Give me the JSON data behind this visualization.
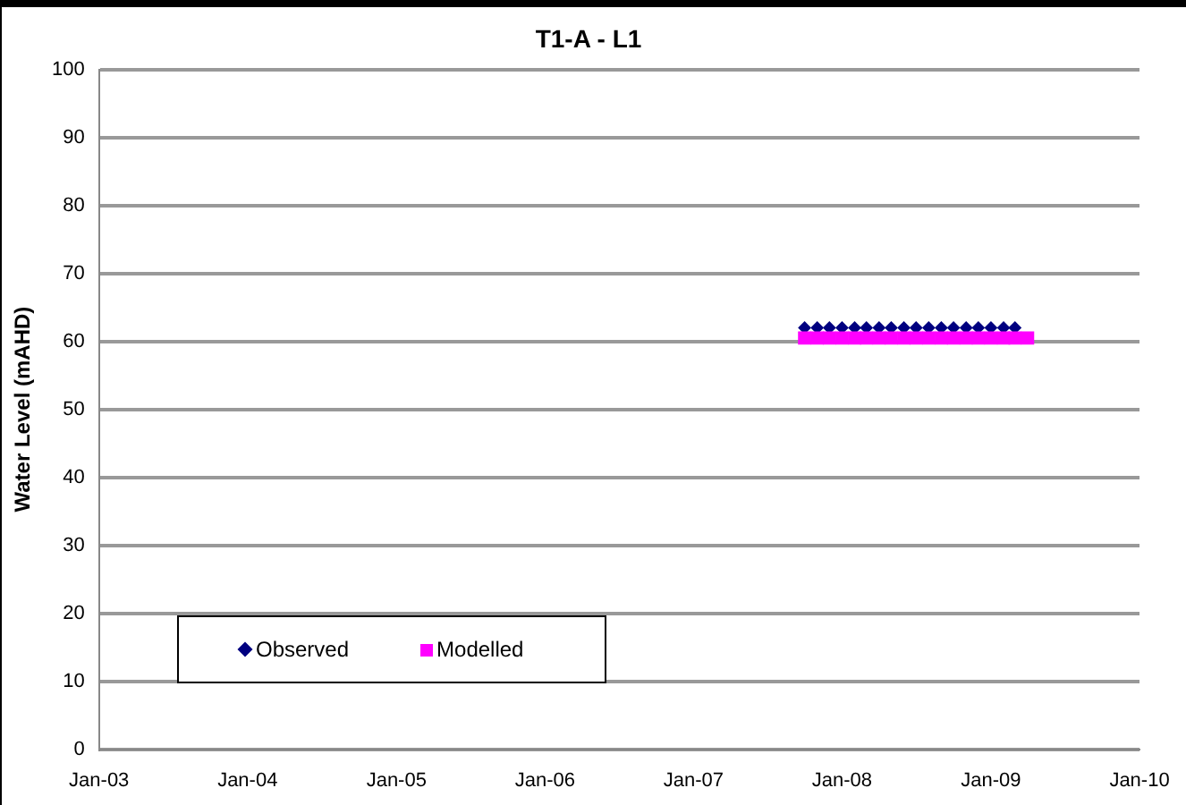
{
  "chart_data": {
    "type": "scatter",
    "title": "T1-A - L1",
    "ylabel": "Water Level (mAHD)",
    "ylim": [
      0,
      100
    ],
    "yticks": [
      0,
      10,
      20,
      30,
      40,
      50,
      60,
      70,
      80,
      90,
      100
    ],
    "xlim": [
      "2003-01",
      "2010-01"
    ],
    "xticks": [
      {
        "value": "2003-01",
        "label": "Jan-03"
      },
      {
        "value": "2004-01",
        "label": "Jan-04"
      },
      {
        "value": "2005-01",
        "label": "Jan-05"
      },
      {
        "value": "2006-01",
        "label": "Jan-06"
      },
      {
        "value": "2007-01",
        "label": "Jan-07"
      },
      {
        "value": "2008-01",
        "label": "Jan-08"
      },
      {
        "value": "2009-01",
        "label": "Jan-09"
      },
      {
        "value": "2010-01",
        "label": "Jan-10"
      }
    ],
    "grid": "y",
    "legend": "bottom left",
    "series": [
      {
        "name": "Observed",
        "marker": "diamond",
        "color": "#000080",
        "x": [
          "2007-10",
          "2007-11",
          "2007-12",
          "2008-01",
          "2008-02",
          "2008-03",
          "2008-04",
          "2008-05",
          "2008-06",
          "2008-07",
          "2008-08",
          "2008-09",
          "2008-10",
          "2008-11",
          "2008-12",
          "2009-01",
          "2009-02",
          "2009-03"
        ],
        "values": [
          62,
          62,
          62,
          62,
          62,
          62,
          62,
          62,
          62,
          62,
          62,
          62,
          62,
          62,
          62,
          62,
          62,
          62
        ]
      },
      {
        "name": "Modelled",
        "marker": "square",
        "color": "#ff00ff",
        "x": [
          "2007-10",
          "2007-11",
          "2007-12",
          "2008-01",
          "2008-02",
          "2008-03",
          "2008-04",
          "2008-05",
          "2008-06",
          "2008-07",
          "2008-08",
          "2008-09",
          "2008-10",
          "2008-11",
          "2008-12",
          "2009-01",
          "2009-02",
          "2009-03",
          "2009-04"
        ],
        "values": [
          60.5,
          60.5,
          60.5,
          60.5,
          60.5,
          60.5,
          60.5,
          60.5,
          60.5,
          60.5,
          60.5,
          60.5,
          60.5,
          60.5,
          60.5,
          60.5,
          60.5,
          60.5,
          60.5
        ]
      }
    ]
  }
}
